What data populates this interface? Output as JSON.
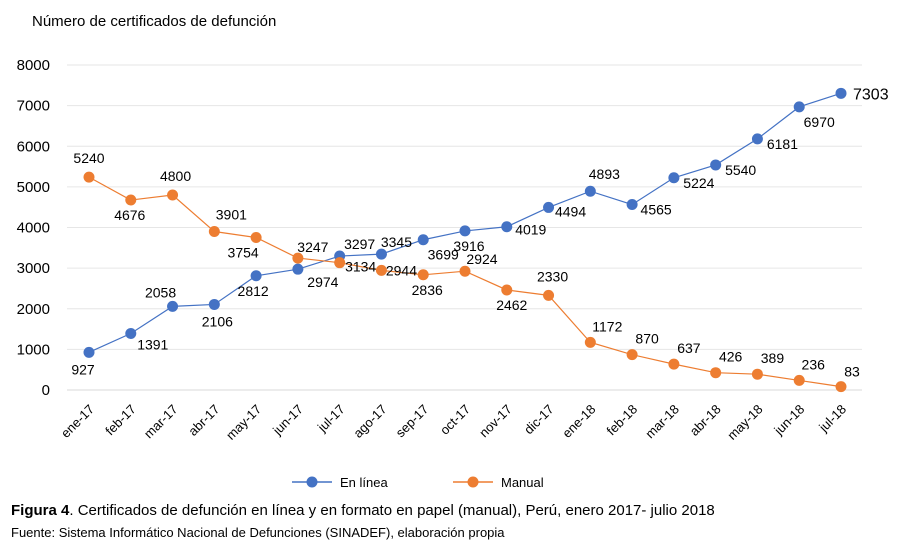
{
  "chart_data": {
    "type": "line",
    "ylabel": "Número de certificados de defunción",
    "ylim": [
      0,
      8000
    ],
    "yticks": [
      0,
      1000,
      2000,
      3000,
      4000,
      5000,
      6000,
      7000,
      8000
    ],
    "grid": true,
    "legend_position": "bottom",
    "categories": [
      "ene-17",
      "feb-17",
      "mar-17",
      "abr-17",
      "may-17",
      "jun-17",
      "jul-17",
      "ago-17",
      "sep-17",
      "oct-17",
      "nov-17",
      "dic-17",
      "ene-18",
      "feb-18",
      "mar-18",
      "abr-18",
      "may-18",
      "jun-18",
      "jul-18"
    ],
    "series": [
      {
        "name": "En línea",
        "color": "#4472C4",
        "values": [
          927,
          1391,
          2058,
          2106,
          2812,
          2974,
          3297,
          3345,
          3699,
          3916,
          4019,
          4494,
          4893,
          4565,
          5224,
          5540,
          6181,
          6970,
          7303
        ]
      },
      {
        "name": "Manual",
        "color": "#ED7D31",
        "values": [
          5240,
          4676,
          4800,
          3901,
          3754,
          3247,
          3134,
          2944,
          2836,
          2924,
          2462,
          2330,
          1172,
          870,
          637,
          426,
          389,
          236,
          83
        ]
      }
    ]
  },
  "caption": {
    "prefix": "Figura 4",
    "text": ". Certificados de defunción en línea y en formato en papel (manual), Perú, enero 2017- julio 2018"
  },
  "source": "Fuente: Sistema Informático Nacional de Defunciones (SINADEF), elaboración propia"
}
